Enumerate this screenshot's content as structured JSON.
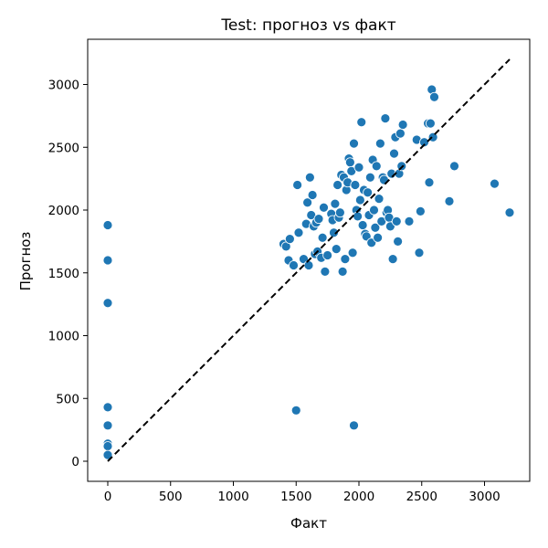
{
  "chart_data": {
    "type": "scatter",
    "title": "Test: прогноз vs факт",
    "xlabel": "Факт",
    "ylabel": "Прогноз",
    "xlim": [
      -160,
      3360
    ],
    "ylim": [
      -160,
      3360
    ],
    "xticks": [
      0,
      500,
      1000,
      1500,
      2000,
      2500,
      3000
    ],
    "yticks": [
      0,
      500,
      1000,
      1500,
      2000,
      2500,
      3000
    ],
    "grid": false,
    "legend": "none",
    "point_color": "#1f77b4",
    "reference_line": {
      "from": [
        0,
        0
      ],
      "to": [
        3200,
        3200
      ],
      "style": "dashed",
      "color": "#000000"
    },
    "points": [
      [
        0,
        1880
      ],
      [
        0,
        1600
      ],
      [
        0,
        1260
      ],
      [
        0,
        430
      ],
      [
        0,
        285
      ],
      [
        0,
        140
      ],
      [
        0,
        120
      ],
      [
        0,
        50
      ],
      [
        1500,
        405
      ],
      [
        1960,
        285
      ],
      [
        1400,
        1730
      ],
      [
        1420,
        1710
      ],
      [
        1440,
        1600
      ],
      [
        1450,
        1770
      ],
      [
        1480,
        1560
      ],
      [
        1510,
        2200
      ],
      [
        1520,
        1820
      ],
      [
        1560,
        1610
      ],
      [
        1580,
        1890
      ],
      [
        1590,
        2060
      ],
      [
        1600,
        1560
      ],
      [
        1610,
        2260
      ],
      [
        1620,
        1960
      ],
      [
        1630,
        2120
      ],
      [
        1640,
        1870
      ],
      [
        1650,
        1650
      ],
      [
        1660,
        1900
      ],
      [
        1670,
        1670
      ],
      [
        1680,
        1930
      ],
      [
        1700,
        1620
      ],
      [
        1710,
        1780
      ],
      [
        1720,
        2020
      ],
      [
        1730,
        1510
      ],
      [
        1750,
        1640
      ],
      [
        1780,
        1970
      ],
      [
        1790,
        1920
      ],
      [
        1800,
        1820
      ],
      [
        1810,
        2050
      ],
      [
        1820,
        1690
      ],
      [
        1830,
        2200
      ],
      [
        1840,
        1940
      ],
      [
        1850,
        1980
      ],
      [
        1860,
        2280
      ],
      [
        1870,
        1510
      ],
      [
        1880,
        2260
      ],
      [
        1890,
        1610
      ],
      [
        1900,
        2160
      ],
      [
        1910,
        2220
      ],
      [
        1920,
        2410
      ],
      [
        1930,
        2380
      ],
      [
        1940,
        2310
      ],
      [
        1950,
        1660
      ],
      [
        1960,
        2530
      ],
      [
        1970,
        2200
      ],
      [
        1980,
        2000
      ],
      [
        1990,
        1950
      ],
      [
        2000,
        2340
      ],
      [
        2010,
        2080
      ],
      [
        2020,
        2700
      ],
      [
        2030,
        1880
      ],
      [
        2040,
        2160
      ],
      [
        2050,
        1810
      ],
      [
        2060,
        1790
      ],
      [
        2070,
        2140
      ],
      [
        2080,
        1960
      ],
      [
        2090,
        2260
      ],
      [
        2100,
        1740
      ],
      [
        2110,
        2400
      ],
      [
        2120,
        2000
      ],
      [
        2130,
        1860
      ],
      [
        2140,
        2350
      ],
      [
        2150,
        1780
      ],
      [
        2160,
        2090
      ],
      [
        2170,
        2530
      ],
      [
        2180,
        1910
      ],
      [
        2190,
        2260
      ],
      [
        2200,
        2240
      ],
      [
        2210,
        2730
      ],
      [
        2220,
        1980
      ],
      [
        2230,
        2000
      ],
      [
        2240,
        1940
      ],
      [
        2250,
        1870
      ],
      [
        2260,
        2290
      ],
      [
        2270,
        1610
      ],
      [
        2280,
        2450
      ],
      [
        2290,
        2580
      ],
      [
        2300,
        1910
      ],
      [
        2310,
        1750
      ],
      [
        2320,
        2290
      ],
      [
        2330,
        2610
      ],
      [
        2340,
        2350
      ],
      [
        2350,
        2680
      ],
      [
        2400,
        1910
      ],
      [
        2460,
        2560
      ],
      [
        2480,
        1660
      ],
      [
        2490,
        1990
      ],
      [
        2520,
        2540
      ],
      [
        2550,
        2690
      ],
      [
        2560,
        2220
      ],
      [
        2570,
        2690
      ],
      [
        2580,
        2960
      ],
      [
        2590,
        2580
      ],
      [
        2600,
        2900
      ],
      [
        2720,
        2070
      ],
      [
        2760,
        2350
      ],
      [
        3080,
        2210
      ],
      [
        3200,
        1980
      ]
    ]
  }
}
